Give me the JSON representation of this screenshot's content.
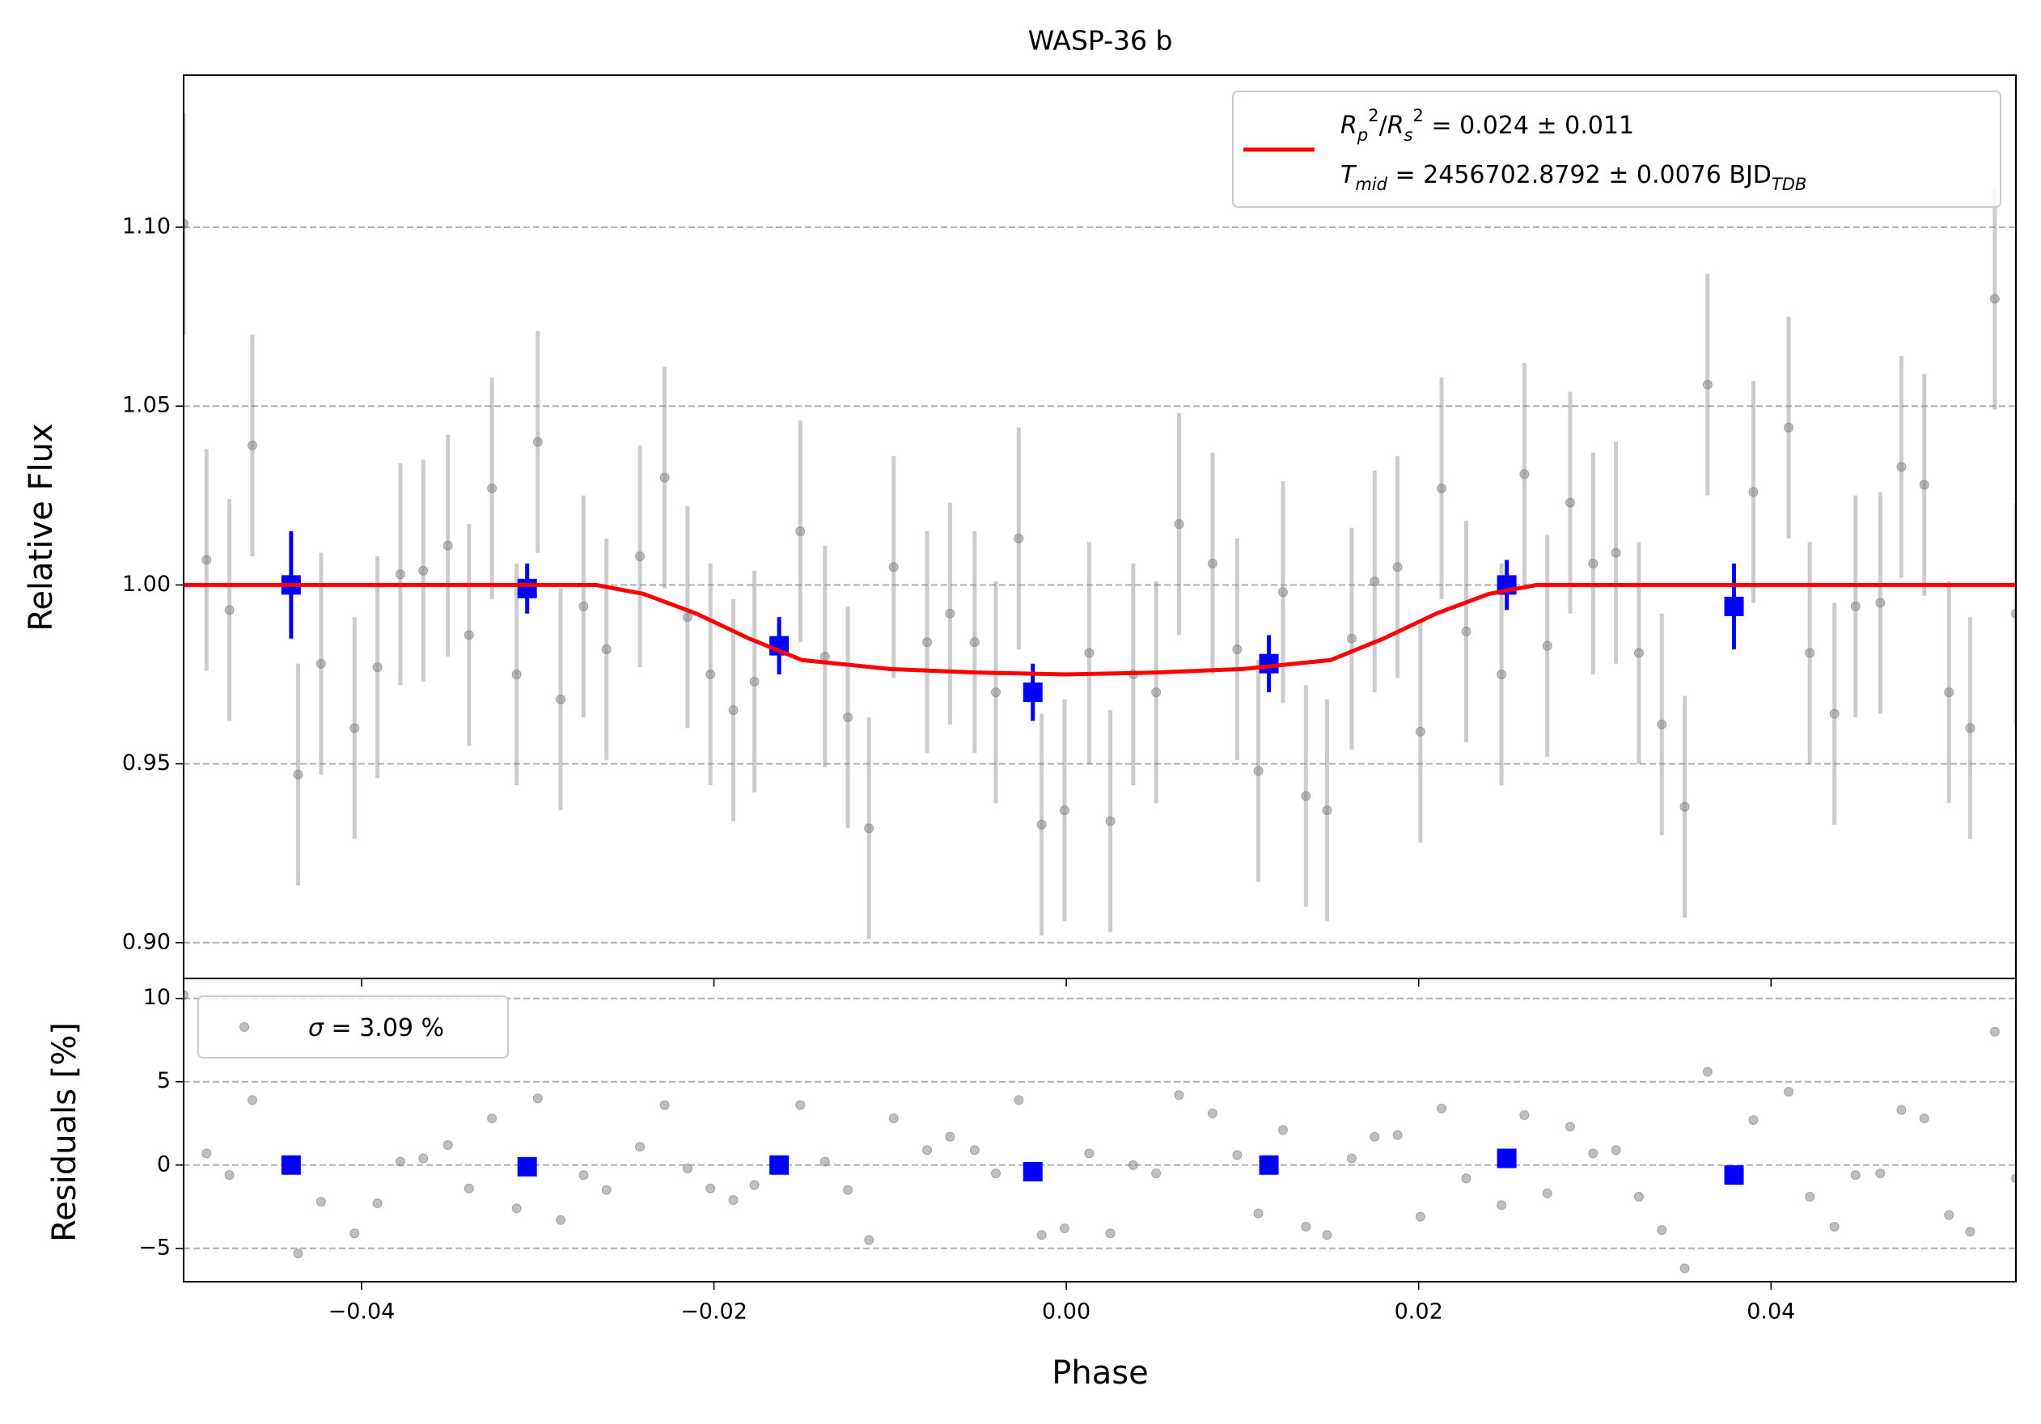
{
  "chart_data": [
    {
      "type": "errorbar",
      "title": "WASP-36 b",
      "y_label": "Relative Flux",
      "xlim": [
        -0.0501,
        0.0539
      ],
      "ylim": [
        0.89,
        1.1425
      ],
      "yticks": [
        {
          "value": 0.9,
          "label": "0.90"
        },
        0.95,
        {
          "value": 1.0,
          "label": "1.00"
        },
        1.05,
        {
          "value": 1.1,
          "label": "1.10"
        }
      ],
      "grid": true,
      "legend": "upper right",
      "series": [
        {
          "kind": "points",
          "color": "#808080",
          "error": 0.031,
          "x": [
            -0.0501,
            -0.0488,
            -0.0475,
            -0.0462,
            -0.0436,
            -0.0423,
            -0.0404,
            -0.0391,
            -0.0378,
            -0.0365,
            -0.0351,
            -0.0339,
            -0.0326,
            -0.0312,
            -0.03,
            -0.0287,
            -0.0274,
            -0.0261,
            -0.0242,
            -0.0228,
            -0.0215,
            -0.0202,
            -0.0189,
            -0.0177,
            -0.0151,
            -0.0137,
            -0.0124,
            -0.0112,
            -0.0098,
            -0.0079,
            -0.0066,
            -0.0052,
            -0.004,
            -0.0027,
            -0.0014,
            -0.0001,
            0.0013,
            0.0025,
            0.0038,
            0.0051,
            0.0064,
            0.0083,
            0.0097,
            0.0109,
            0.0123,
            0.0136,
            0.0148,
            0.0162,
            0.0175,
            0.0188,
            0.0201,
            0.0213,
            0.0227,
            0.0247,
            0.026,
            0.0273,
            0.0286,
            0.0299,
            0.0312,
            0.0325,
            0.0338,
            0.0351,
            0.0364,
            0.039,
            0.041,
            0.0422,
            0.0436,
            0.0448,
            0.0462,
            0.0474,
            0.0487,
            0.0501,
            0.0513,
            0.0527,
            0.0539
          ],
          "values": [
            1.101,
            1.007,
            0.993,
            1.039,
            0.947,
            0.978,
            0.96,
            0.977,
            1.003,
            1.004,
            1.011,
            0.986,
            1.027,
            0.975,
            1.04,
            0.968,
            0.994,
            0.982,
            1.008,
            1.03,
            0.991,
            0.975,
            0.965,
            0.973,
            1.015,
            0.98,
            0.963,
            0.932,
            1.005,
            0.984,
            0.992,
            0.984,
            0.97,
            1.013,
            0.933,
            0.937,
            0.981,
            0.934,
            0.975,
            0.97,
            1.017,
            1.006,
            0.982,
            0.948,
            0.998,
            0.941,
            0.937,
            0.985,
            1.001,
            1.005,
            0.959,
            1.027,
            0.987,
            0.975,
            1.031,
            0.983,
            1.023,
            1.006,
            1.009,
            0.981,
            0.961,
            0.938,
            1.056,
            1.026,
            1.044,
            0.981,
            0.964,
            0.994,
            0.995,
            1.033,
            1.028,
            0.97,
            0.96,
            1.08,
            0.992
          ]
        },
        {
          "kind": "binned",
          "color": "#0000ff",
          "x": [
            -0.044,
            -0.0306,
            -0.0163,
            -0.0019,
            0.0115,
            0.025,
            0.0379
          ],
          "values": [
            1.0,
            0.999,
            0.983,
            0.97,
            0.978,
            1.0,
            0.994
          ],
          "errors": [
            0.015,
            0.007,
            0.008,
            0.008,
            0.008,
            0.007,
            0.012
          ]
        },
        {
          "kind": "line",
          "color": "#ff0000",
          "name": [
            [
              [
                "R",
                "i"
              ],
              [
                "p",
                "isub"
              ],
              [
                "2",
                "sup"
              ],
              [
                "/",
                "n"
              ],
              [
                "R",
                "i"
              ],
              [
                "s",
                "isub"
              ],
              [
                "2",
                "sup"
              ],
              [
                " = 0.024 ± 0.011",
                "n"
              ]
            ],
            [
              [
                "T",
                "i"
              ],
              [
                "mid",
                "isub"
              ],
              [
                " = 2456702.8792 ± 0.0076 BJD",
                "n"
              ],
              [
                "TDB",
                "isub"
              ]
            ]
          ],
          "x": [
            -0.0501,
            -0.0267,
            -0.024,
            -0.021,
            -0.018,
            -0.015,
            -0.01,
            -0.005,
            0.0,
            0.005,
            0.01,
            0.015,
            0.018,
            0.021,
            0.024,
            0.0267,
            0.0539
          ],
          "values": [
            1.0,
            1.0,
            0.9975,
            0.992,
            0.985,
            0.979,
            0.9765,
            0.9755,
            0.975,
            0.9755,
            0.9765,
            0.979,
            0.985,
            0.992,
            0.9975,
            1.0,
            1.0
          ]
        }
      ]
    },
    {
      "type": "scatter",
      "x_label": "Phase",
      "y_label": "Residuals [%]",
      "xlim": [
        -0.0501,
        0.0539
      ],
      "ylim": [
        -7.0,
        11.2
      ],
      "xticks": [
        {
          "value": -0.04,
          "label": "−0.04"
        },
        {
          "value": -0.02,
          "label": "−0.02"
        },
        {
          "value": 0.0,
          "label": "0.00"
        },
        0.02,
        0.04
      ],
      "yticks": [
        {
          "value": -5,
          "label": "−5"
        },
        0,
        5,
        10
      ],
      "grid": true,
      "legend": "upper left",
      "series": [
        {
          "kind": "points",
          "color": "#808080",
          "name": [
            [
              [
                "σ",
                "i"
              ],
              [
                " = 3.09 %",
                "n"
              ]
            ]
          ],
          "x": [
            -0.0501,
            -0.0488,
            -0.0475,
            -0.0462,
            -0.0436,
            -0.0423,
            -0.0404,
            -0.0391,
            -0.0378,
            -0.0365,
            -0.0351,
            -0.0339,
            -0.0326,
            -0.0312,
            -0.03,
            -0.0287,
            -0.0274,
            -0.0261,
            -0.0242,
            -0.0228,
            -0.0215,
            -0.0202,
            -0.0189,
            -0.0177,
            -0.0151,
            -0.0137,
            -0.0124,
            -0.0112,
            -0.0098,
            -0.0079,
            -0.0066,
            -0.0052,
            -0.004,
            -0.0027,
            -0.0014,
            -0.0001,
            0.0013,
            0.0025,
            0.0038,
            0.0051,
            0.0064,
            0.0083,
            0.0097,
            0.0109,
            0.0123,
            0.0136,
            0.0148,
            0.0162,
            0.0175,
            0.0188,
            0.0201,
            0.0213,
            0.0227,
            0.0247,
            0.026,
            0.0273,
            0.0286,
            0.0299,
            0.0312,
            0.0325,
            0.0338,
            0.0351,
            0.0364,
            0.039,
            0.041,
            0.0422,
            0.0436,
            0.0448,
            0.0462,
            0.0474,
            0.0487,
            0.0501,
            0.0513,
            0.0527,
            0.0539
          ],
          "values": [
            10.2,
            0.7,
            -0.6,
            3.9,
            -5.3,
            -2.2,
            -4.1,
            -2.3,
            0.2,
            0.4,
            1.2,
            -1.4,
            2.8,
            -2.6,
            4.0,
            -3.3,
            -0.6,
            -1.5,
            1.1,
            3.6,
            -0.2,
            -1.4,
            -2.1,
            -1.2,
            3.6,
            0.2,
            -1.5,
            -4.5,
            2.8,
            0.9,
            1.7,
            0.9,
            -0.5,
            3.9,
            -4.2,
            -3.8,
            0.7,
            -4.1,
            0.0,
            -0.5,
            4.2,
            3.1,
            0.6,
            -2.9,
            2.1,
            -3.7,
            -4.2,
            0.4,
            1.7,
            1.8,
            -3.1,
            3.4,
            -0.8,
            -2.4,
            3.0,
            -1.7,
            2.3,
            0.7,
            0.9,
            -1.9,
            -3.9,
            -6.2,
            5.6,
            2.7,
            4.4,
            -1.9,
            -3.7,
            -0.6,
            -0.5,
            3.3,
            2.8,
            -3.0,
            -4.0,
            8.0,
            -0.8
          ]
        },
        {
          "kind": "binned",
          "color": "#0000ff",
          "x": [
            -0.044,
            -0.0306,
            -0.0163,
            -0.0019,
            0.0115,
            0.025,
            0.0379
          ],
          "values": [
            0.0,
            -0.1,
            0.0,
            -0.4,
            0.0,
            0.4,
            -0.6
          ]
        }
      ]
    }
  ]
}
